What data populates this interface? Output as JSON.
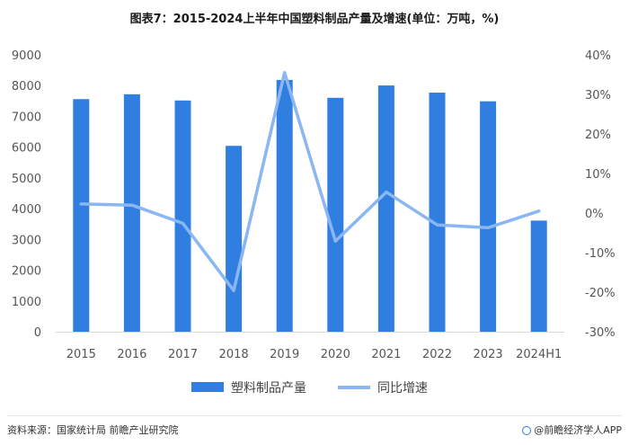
{
  "title": "图表7：2015-2024上半年中国塑料制品产量及增速(单位：万吨，%)",
  "chart_data": {
    "type": "bar",
    "categories": [
      "2015",
      "2016",
      "2017",
      "2018",
      "2019",
      "2020",
      "2021",
      "2022",
      "2023",
      "2024H1"
    ],
    "series": [
      {
        "name": "塑料制品产量",
        "type": "bar",
        "axis": "left",
        "color": "#2f7ee0",
        "values": [
          7560,
          7718,
          7516,
          6042,
          8184,
          7603,
          8004,
          7772,
          7489,
          3612
        ]
      },
      {
        "name": "同比增速",
        "type": "line",
        "axis": "right",
        "color": "#8ab7f2",
        "values": [
          2.3,
          2.0,
          -2.6,
          -19.6,
          35.5,
          -7.1,
          5.3,
          -3.0,
          -3.7,
          0.5
        ]
      }
    ],
    "left_axis": {
      "min": 0,
      "max": 9000,
      "ticks": [
        0,
        1000,
        2000,
        3000,
        4000,
        5000,
        6000,
        7000,
        8000,
        9000
      ]
    },
    "right_axis": {
      "min": -30,
      "max": 40,
      "ticks": [
        "-30%",
        "-20%",
        "-10%",
        "0%",
        "10%",
        "20%",
        "30%",
        "40%"
      ]
    },
    "grid": false,
    "legend_position": "bottom"
  },
  "footer": {
    "source": "资料来源：国家统计局 前瞻产业研究院",
    "brand": "@前瞻经济学人APP"
  }
}
